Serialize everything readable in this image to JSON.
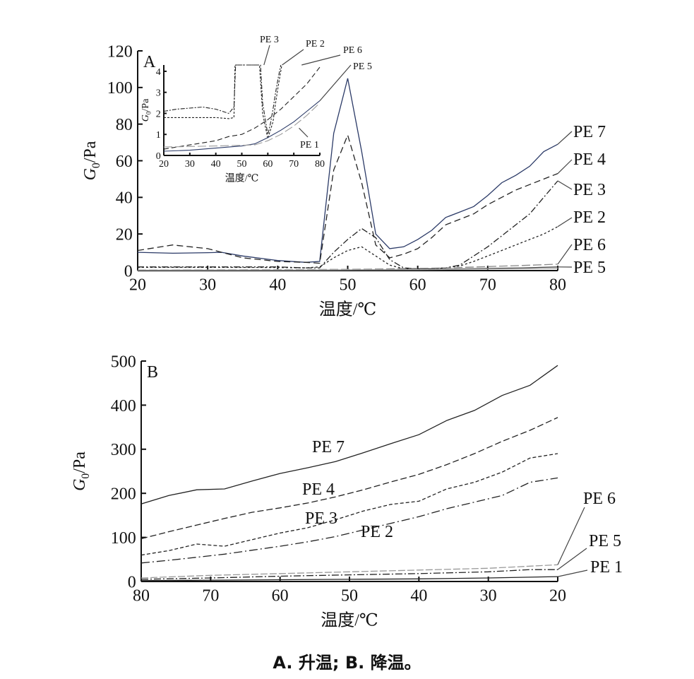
{
  "caption": "A. 升温; B. 降温。",
  "chart_data": [
    {
      "id": "A",
      "panel_label": "A",
      "type": "line",
      "xlabel": "温度/℃",
      "ylabel": "G0/Pa",
      "xlim": [
        20,
        80
      ],
      "ylim": [
        0,
        120
      ],
      "xticks": [
        20,
        30,
        40,
        50,
        60,
        70,
        80
      ],
      "yticks": [
        0,
        20,
        40,
        60,
        80,
        100,
        120
      ],
      "x_reversed": false,
      "series": [
        {
          "name": "PE 7",
          "color": "#2b3a67",
          "dash": "",
          "x": [
            20,
            25,
            30,
            32,
            35,
            40,
            44,
            46,
            48,
            50,
            52,
            54,
            56,
            58,
            60,
            62,
            64,
            66,
            68,
            70,
            72,
            74,
            76,
            78,
            80
          ],
          "y": [
            10,
            9.5,
            9.8,
            10,
            8,
            5.5,
            4.5,
            5,
            75,
            105,
            65,
            20,
            12,
            13,
            17,
            22,
            29,
            32,
            35,
            41,
            48,
            52,
            57,
            65,
            69
          ]
        },
        {
          "name": "PE 4",
          "color": "#222222",
          "dash": "9,5",
          "x": [
            20,
            25,
            30,
            32,
            35,
            40,
            44,
            46,
            48,
            50,
            52,
            54,
            56,
            58,
            60,
            62,
            64,
            66,
            68,
            70,
            72,
            74,
            76,
            78,
            80
          ],
          "y": [
            11,
            14,
            12,
            10,
            7,
            5,
            4.5,
            4,
            55,
            74,
            48,
            14,
            7,
            9,
            12,
            18,
            25,
            28,
            31,
            36,
            40,
            44,
            47,
            50,
            53
          ]
        },
        {
          "name": "PE 3",
          "color": "#222222",
          "dash": "9,3,2,3",
          "x": [
            20,
            30,
            40,
            44,
            46,
            48,
            50,
            52,
            54,
            56,
            58,
            60,
            62,
            64,
            66,
            68,
            70,
            72,
            74,
            76,
            78,
            80
          ],
          "y": [
            2,
            2,
            2,
            1.5,
            1.5,
            10,
            17,
            23,
            18,
            6,
            1.5,
            1,
            1,
            1.5,
            3,
            8,
            13,
            19,
            25,
            31,
            40,
            49
          ]
        },
        {
          "name": "PE 2",
          "color": "#222222",
          "dash": "3,3",
          "x": [
            20,
            30,
            40,
            44,
            46,
            48,
            50,
            52,
            54,
            56,
            58,
            60,
            62,
            64,
            66,
            68,
            70,
            72,
            74,
            76,
            78,
            80
          ],
          "y": [
            1.8,
            1.8,
            1.7,
            1.5,
            2,
            7,
            11,
            13,
            8,
            3,
            1,
            0.8,
            1,
            1.5,
            2.5,
            5,
            8,
            11,
            14,
            17,
            20,
            24
          ]
        },
        {
          "name": "PE 6",
          "color": "#888888",
          "dash": "12,4",
          "x": [
            20,
            30,
            40,
            46,
            50,
            55,
            60,
            65,
            70,
            75,
            80
          ],
          "y": [
            0.3,
            0.4,
            0.5,
            0.6,
            0.7,
            0.9,
            1.2,
            1.6,
            2.2,
            2.8,
            3.5
          ]
        },
        {
          "name": "PE 5",
          "color": "#444444",
          "dash": "",
          "x": [
            20,
            30,
            40,
            46,
            50,
            55,
            60,
            65,
            70,
            75,
            80
          ],
          "y": [
            0.2,
            0.25,
            0.3,
            0.35,
            0.4,
            0.5,
            0.7,
            0.9,
            1.2,
            1.5,
            2
          ]
        },
        {
          "name": "PE 1",
          "color": "#aaaaaa",
          "dash": "",
          "x": [
            20,
            40,
            60,
            80
          ],
          "y": [
            0.2,
            0.3,
            0.5,
            1.2
          ]
        }
      ],
      "labels": [
        {
          "text": "PE 7",
          "series": "PE 7"
        },
        {
          "text": "PE 4",
          "series": "PE 4"
        },
        {
          "text": "PE 3",
          "series": "PE 3"
        },
        {
          "text": "PE 2",
          "series": "PE 2"
        },
        {
          "text": "PE 6",
          "series": "PE 6"
        },
        {
          "text": "PE 5",
          "series": "PE 5"
        }
      ],
      "inset": {
        "type": "line",
        "xlabel": "温度/℃",
        "ylabel": "G0/Pa",
        "xlim": [
          20,
          80
        ],
        "ylim": [
          0,
          4.3
        ],
        "xticks": [
          20,
          30,
          40,
          50,
          60,
          70,
          80
        ],
        "yticks": [
          0,
          1,
          2,
          3,
          4
        ],
        "series": [
          {
            "name": "PE 3",
            "color": "#222222",
            "dash": "6,2,2,2",
            "x": [
              20,
              25,
              30,
              35,
              40,
              45,
              47,
              47.6,
              57.2,
              58,
              60,
              61,
              62,
              63,
              64,
              65
            ],
            "y": [
              2.1,
              2.2,
              2.25,
              2.3,
              2.2,
              2.0,
              2.3,
              4.3,
              4.3,
              2.5,
              1.0,
              1.5,
              2.2,
              3.0,
              3.7,
              4.3
            ]
          },
          {
            "name": "PE 2",
            "color": "#222222",
            "dash": "3,2",
            "x": [
              20,
              30,
              40,
              45,
              47,
              47.4,
              56.8,
              58,
              60,
              62,
              63,
              64,
              65.4
            ],
            "y": [
              1.8,
              1.8,
              1.8,
              1.75,
              1.8,
              4.3,
              4.3,
              2.0,
              0.8,
              1.6,
              2.5,
              3.3,
              4.3
            ]
          },
          {
            "name": "PE 6",
            "color": "#222222",
            "dash": "7,4",
            "x": [
              20,
              30,
              40,
              45,
              50,
              55,
              60,
              65,
              70,
              75,
              80
            ],
            "y": [
              0.3,
              0.5,
              0.7,
              0.9,
              1.0,
              1.3,
              1.7,
              2.2,
              2.8,
              3.4,
              4.2
            ]
          },
          {
            "name": "PE 5",
            "color": "#2b3a67",
            "dash": "",
            "x": [
              20,
              30,
              40,
              50,
              55,
              60,
              65,
              70,
              75,
              80
            ],
            "y": [
              0.2,
              0.25,
              0.35,
              0.45,
              0.55,
              0.85,
              1.2,
              1.6,
              2.1,
              2.6
            ]
          },
          {
            "name": "PE 1",
            "color": "#999999",
            "dash": "12,4",
            "x": [
              20,
              40,
              55,
              60,
              65,
              70,
              75,
              80
            ],
            "y": [
              0.4,
              0.45,
              0.5,
              0.7,
              1.0,
              1.4,
              1.9,
              2.5
            ]
          }
        ],
        "labels": [
          {
            "text": "PE 3",
            "series": "PE 3"
          },
          {
            "text": "PE 2",
            "series": "PE 2"
          },
          {
            "text": "PE 6",
            "series": "PE 6"
          },
          {
            "text": "PE 5",
            "series": "PE 5"
          },
          {
            "text": "PE 1",
            "series": "PE 1"
          }
        ]
      }
    },
    {
      "id": "B",
      "panel_label": "B",
      "type": "line",
      "xlabel": "温度/℃",
      "ylabel": "G0/Pa",
      "xlim": [
        80,
        20
      ],
      "ylim": [
        0,
        500
      ],
      "xticks": [
        80,
        70,
        60,
        50,
        40,
        30,
        20
      ],
      "yticks": [
        0,
        100,
        200,
        300,
        400,
        500
      ],
      "x_reversed": true,
      "series": [
        {
          "name": "PE 7",
          "color": "#222222",
          "dash": "",
          "x": [
            80,
            76,
            72,
            68,
            64,
            60,
            56,
            52,
            48,
            44,
            40,
            36,
            32,
            28,
            24,
            20
          ],
          "y": [
            176,
            195,
            208,
            210,
            228,
            245,
            258,
            272,
            292,
            313,
            333,
            365,
            388,
            422,
            445,
            490
          ]
        },
        {
          "name": "PE 4",
          "color": "#222222",
          "dash": "9,4",
          "x": [
            80,
            76,
            72,
            68,
            64,
            60,
            56,
            52,
            48,
            44,
            40,
            36,
            32,
            28,
            24,
            20
          ],
          "y": [
            97,
            113,
            128,
            143,
            157,
            167,
            178,
            192,
            208,
            226,
            243,
            265,
            290,
            318,
            343,
            372
          ]
        },
        {
          "name": "PE 3",
          "color": "#222222",
          "dash": "5,3",
          "x": [
            80,
            76,
            72,
            68,
            64,
            60,
            56,
            52,
            48,
            44,
            40,
            36,
            32,
            28,
            24,
            20
          ],
          "y": [
            60,
            70,
            85,
            80,
            95,
            110,
            122,
            140,
            160,
            175,
            182,
            210,
            225,
            248,
            280,
            290
          ]
        },
        {
          "name": "PE 2",
          "color": "#222222",
          "dash": "12,4,2,4",
          "x": [
            80,
            76,
            72,
            68,
            64,
            60,
            56,
            52,
            48,
            44,
            40,
            36,
            32,
            28,
            24,
            20
          ],
          "y": [
            42,
            48,
            55,
            62,
            71,
            80,
            90,
            102,
            117,
            132,
            147,
            165,
            180,
            195,
            225,
            235
          ]
        },
        {
          "name": "PE 6",
          "color": "#999999",
          "dash": "10,3",
          "x": [
            80,
            70,
            60,
            50,
            40,
            30,
            20
          ],
          "y": [
            8,
            14,
            18,
            22,
            26,
            30,
            38
          ]
        },
        {
          "name": "PE 5",
          "color": "#222222",
          "dash": "10,3,2,3",
          "x": [
            80,
            70,
            60,
            50,
            40,
            30,
            24,
            20
          ],
          "y": [
            5,
            8,
            12,
            15,
            18,
            22,
            27,
            27
          ]
        },
        {
          "name": "PE 1",
          "color": "#222222",
          "dash": "",
          "x": [
            80,
            70,
            60,
            50,
            40,
            30,
            20
          ],
          "y": [
            2,
            3,
            4,
            5,
            6,
            8,
            11
          ]
        }
      ],
      "labels": [
        {
          "text": "PE 7",
          "series": "PE 7"
        },
        {
          "text": "PE 4",
          "series": "PE 4"
        },
        {
          "text": "PE 3",
          "series": "PE 3"
        },
        {
          "text": "PE 2",
          "series": "PE 2"
        },
        {
          "text": "PE 6",
          "series": "PE 6"
        },
        {
          "text": "PE 5",
          "series": "PE 5"
        },
        {
          "text": "PE 1",
          "series": "PE 1"
        }
      ]
    }
  ]
}
